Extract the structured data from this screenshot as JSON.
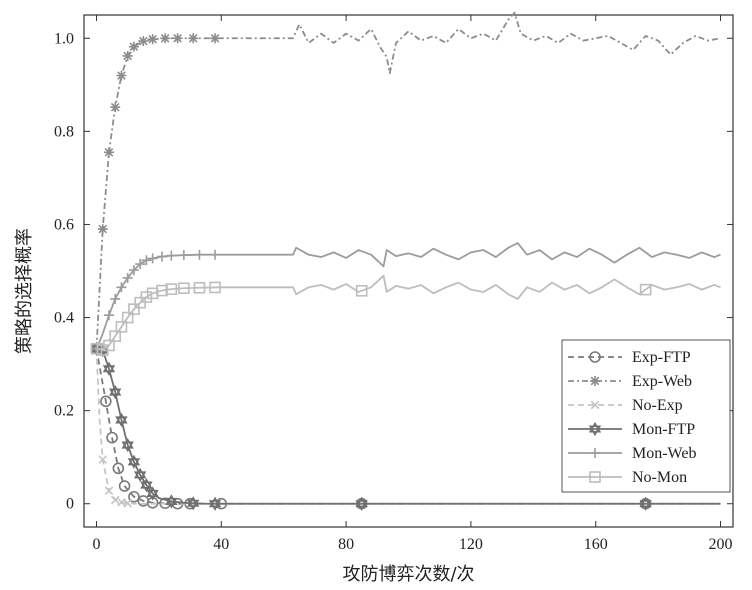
{
  "chart_data": {
    "type": "line",
    "title": "",
    "xlabel": "攻防博弈次数/次",
    "ylabel": "策略的选择概率",
    "xlim": [
      -4,
      204
    ],
    "ylim": [
      -0.05,
      1.05
    ],
    "x_ticks": [
      0,
      40,
      80,
      120,
      160,
      200
    ],
    "x_tick_labels": [
      "0",
      "40",
      "80",
      "120",
      "160",
      "200"
    ],
    "y_ticks": [
      0,
      0.2,
      0.4,
      0.6,
      0.8,
      1.0
    ],
    "y_tick_labels": [
      "0",
      "0.2",
      "0.4",
      "0.6",
      "0.8",
      "1.0"
    ],
    "grid": false,
    "legend_position": "lower-right",
    "series": [
      {
        "name": "Exp-FTP",
        "color": "#7a7a7a",
        "dash": "6,4",
        "marker": "circle",
        "x": [
          0,
          3,
          5,
          7,
          9,
          12,
          15,
          18,
          22,
          26,
          30,
          40,
          60,
          85,
          120,
          160,
          176,
          200
        ],
        "values": [
          0.333,
          0.22,
          0.142,
          0.076,
          0.038,
          0.015,
          0.006,
          0.002,
          0.001,
          0,
          0,
          0,
          0,
          0,
          0,
          0,
          0,
          0
        ]
      },
      {
        "name": "Exp-Web",
        "color": "#8c8c8c",
        "dash": "6,3,2,3",
        "marker": "asterisk",
        "x": [
          0,
          2,
          4,
          6,
          8,
          10,
          12,
          15,
          18,
          22,
          26,
          31,
          38,
          45,
          55,
          63,
          65,
          68,
          72,
          76,
          80,
          84,
          88,
          91,
          93,
          94,
          96,
          100,
          104,
          108,
          112,
          116,
          120,
          124,
          128,
          132,
          134,
          136,
          140,
          144,
          148,
          152,
          156,
          160,
          164,
          168,
          172,
          176,
          180,
          184,
          188,
          192,
          196,
          200
        ],
        "values": [
          0.333,
          0.59,
          0.755,
          0.852,
          0.92,
          0.962,
          0.982,
          0.994,
          0.998,
          1.0,
          1.0,
          1.0,
          1.0,
          1.0,
          1.0,
          1.0,
          1.03,
          0.99,
          1.01,
          0.99,
          1.01,
          0.995,
          1.02,
          0.98,
          0.96,
          0.925,
          0.99,
          1.015,
          0.995,
          1.005,
          0.99,
          1.02,
          1.0,
          1.01,
          0.995,
          1.04,
          1.055,
          1.01,
          0.995,
          1.005,
          0.99,
          1.01,
          0.995,
          1.0,
          1.005,
          0.99,
          0.975,
          1.005,
          0.995,
          0.965,
          0.99,
          1.005,
          0.995,
          1.0
        ]
      },
      {
        "name": "No-Exp",
        "color": "#c4c4c4",
        "dash": "6,4",
        "marker": "x",
        "x": [
          0,
          1,
          2,
          4,
          6,
          8,
          10,
          12,
          15,
          20,
          30,
          50,
          100,
          150,
          200
        ],
        "values": [
          0.333,
          0.18,
          0.095,
          0.028,
          0.008,
          0.003,
          0.001,
          0,
          0,
          0,
          0,
          0,
          0,
          0,
          0
        ]
      },
      {
        "name": "Mon-FTP",
        "color": "#6f6f6f",
        "dash": "",
        "marker": "star",
        "x": [
          0,
          2,
          4,
          6,
          8,
          10,
          12,
          14,
          16,
          18,
          20,
          24,
          28,
          31,
          35,
          38,
          40,
          60,
          85,
          120,
          160,
          176,
          200
        ],
        "values": [
          0.333,
          0.33,
          0.29,
          0.24,
          0.18,
          0.126,
          0.09,
          0.062,
          0.04,
          0.022,
          0.012,
          0.005,
          0.002,
          0.001,
          0,
          0,
          0,
          0,
          0,
          0,
          0,
          0,
          0
        ]
      },
      {
        "name": "Mon-Web",
        "color": "#9c9c9c",
        "dash": "",
        "marker": "plus",
        "x": [
          0,
          2,
          4,
          6,
          8,
          10,
          12,
          14,
          16,
          18,
          21,
          24,
          28,
          33,
          40,
          50,
          63,
          64,
          68,
          72,
          76,
          80,
          84,
          88,
          92,
          93,
          96,
          100,
          104,
          108,
          112,
          116,
          120,
          124,
          128,
          132,
          135,
          138,
          142,
          146,
          150,
          154,
          158,
          162,
          166,
          170,
          174,
          178,
          182,
          186,
          190,
          194,
          198,
          200
        ],
        "values": [
          0.333,
          0.365,
          0.405,
          0.44,
          0.465,
          0.485,
          0.502,
          0.515,
          0.523,
          0.527,
          0.531,
          0.533,
          0.534,
          0.535,
          0.535,
          0.535,
          0.535,
          0.55,
          0.535,
          0.53,
          0.54,
          0.528,
          0.545,
          0.535,
          0.51,
          0.545,
          0.532,
          0.538,
          0.53,
          0.548,
          0.535,
          0.525,
          0.54,
          0.545,
          0.53,
          0.55,
          0.56,
          0.535,
          0.545,
          0.525,
          0.54,
          0.53,
          0.548,
          0.535,
          0.518,
          0.535,
          0.55,
          0.53,
          0.54,
          0.535,
          0.528,
          0.54,
          0.53,
          0.535
        ]
      },
      {
        "name": "No-Mon",
        "color": "#bdbdbd",
        "dash": "",
        "marker": "square",
        "x": [
          0,
          2,
          4,
          6,
          8,
          10,
          12,
          14,
          16,
          18,
          21,
          24,
          28,
          33,
          40,
          50,
          63,
          64,
          68,
          72,
          76,
          80,
          84,
          88,
          92,
          93,
          96,
          100,
          104,
          108,
          112,
          116,
          120,
          124,
          128,
          132,
          135,
          138,
          142,
          146,
          150,
          154,
          158,
          162,
          166,
          170,
          174,
          178,
          182,
          186,
          190,
          194,
          198,
          200
        ],
        "values": [
          0.333,
          0.33,
          0.34,
          0.36,
          0.38,
          0.4,
          0.418,
          0.432,
          0.444,
          0.452,
          0.458,
          0.461,
          0.463,
          0.464,
          0.465,
          0.465,
          0.465,
          0.45,
          0.465,
          0.47,
          0.46,
          0.472,
          0.455,
          0.465,
          0.49,
          0.455,
          0.468,
          0.462,
          0.47,
          0.452,
          0.465,
          0.475,
          0.46,
          0.455,
          0.47,
          0.45,
          0.44,
          0.465,
          0.455,
          0.475,
          0.46,
          0.47,
          0.452,
          0.465,
          0.482,
          0.465,
          0.45,
          0.47,
          0.46,
          0.465,
          0.472,
          0.46,
          0.47,
          0.465
        ]
      }
    ]
  }
}
